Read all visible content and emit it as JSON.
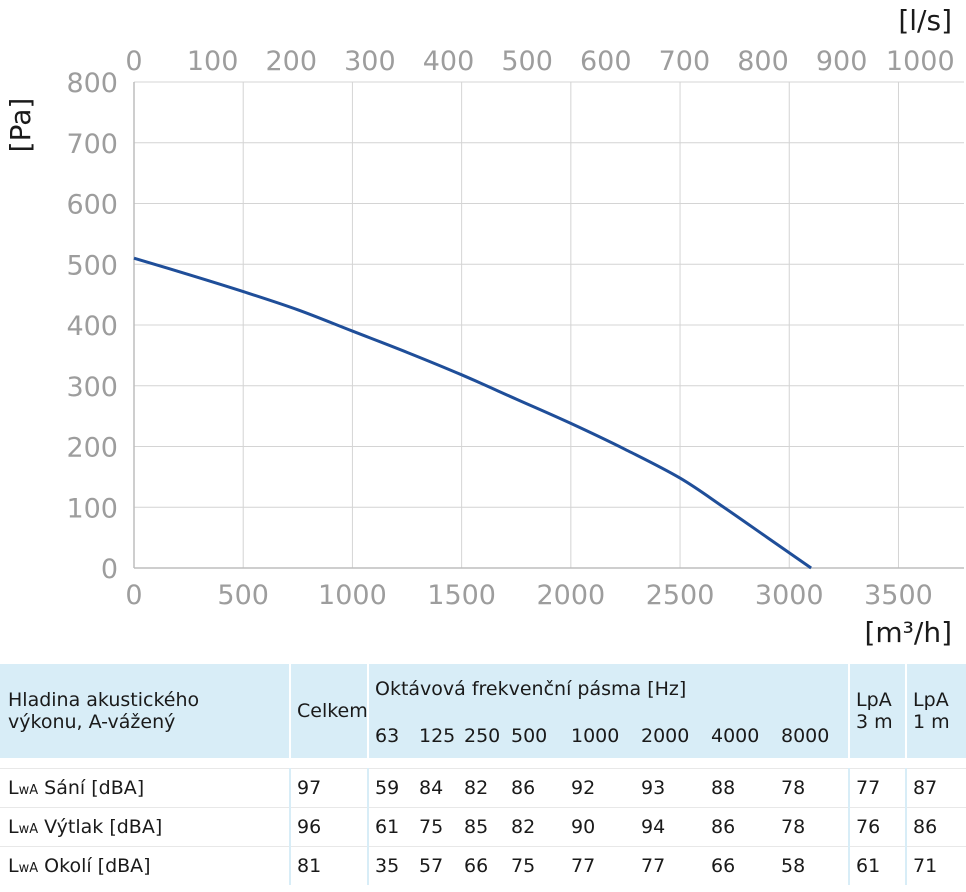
{
  "chart_data": {
    "type": "line",
    "x_bottom": {
      "unit_label": "[m³/h]",
      "range": [
        0,
        3800
      ],
      "ticks": [
        0,
        500,
        1000,
        1500,
        2000,
        2500,
        3000,
        3500
      ],
      "tick_labels": [
        "0",
        "500",
        "1000",
        "1500",
        "2000",
        "2500",
        "3000",
        "3500"
      ]
    },
    "x_top": {
      "unit_label": "[l/s]",
      "range": [
        0,
        1055.6
      ],
      "ticks": [
        0,
        100,
        200,
        300,
        400,
        500,
        600,
        700,
        800,
        900,
        1000
      ],
      "tick_labels": [
        "0",
        "100",
        "200",
        "300",
        "400",
        "500",
        "600",
        "700",
        "800",
        "900",
        "1000"
      ]
    },
    "y": {
      "unit_label": "[Pa]",
      "range": [
        0,
        800
      ],
      "ticks": [
        0,
        100,
        200,
        300,
        400,
        500,
        600,
        700,
        800
      ],
      "tick_labels": [
        "0",
        "100",
        "200",
        "300",
        "400",
        "500",
        "600",
        "700",
        "800"
      ]
    },
    "grid": true,
    "series": [
      {
        "color": "#1f4e99",
        "x": [
          0,
          250,
          500,
          750,
          1000,
          1250,
          1500,
          1750,
          2000,
          2250,
          2500,
          2700,
          2900,
          3100
        ],
        "y": [
          510,
          483,
          455,
          425,
          390,
          355,
          318,
          278,
          238,
          195,
          148,
          100,
          50,
          0
        ]
      }
    ]
  },
  "table": {
    "header_title_line1": "Hladina akustického",
    "header_title_line2": "výkonu, A-vážený",
    "col_total": "Celkem",
    "octave_title": "Oktávová frekvenční pásma [Hz]",
    "bands": [
      "63",
      "125",
      "250",
      "500",
      "1000",
      "2000",
      "4000",
      "8000"
    ],
    "lpa3_line1": "LpA",
    "lpa3_line2": "3 m",
    "lpa1_line1": "LpA",
    "lpa1_line2": "1 m",
    "rows": [
      {
        "prefix": "L",
        "sub": "wA",
        "label": "Sání [dBA]",
        "total": "97",
        "bands": [
          "59",
          "84",
          "82",
          "86",
          "92",
          "93",
          "88",
          "78"
        ],
        "lpa3": "77",
        "lpa1": "87"
      },
      {
        "prefix": "L",
        "sub": "wA",
        "label": "Výtlak [dBA]",
        "total": "96",
        "bands": [
          "61",
          "75",
          "85",
          "82",
          "90",
          "94",
          "86",
          "78"
        ],
        "lpa3": "76",
        "lpa1": "86"
      },
      {
        "prefix": "L",
        "sub": "wA",
        "label": "Okolí [dBA]",
        "total": "81",
        "bands": [
          "35",
          "57",
          "66",
          "75",
          "77",
          "77",
          "66",
          "58"
        ],
        "lpa3": "61",
        "lpa1": "71"
      }
    ]
  }
}
